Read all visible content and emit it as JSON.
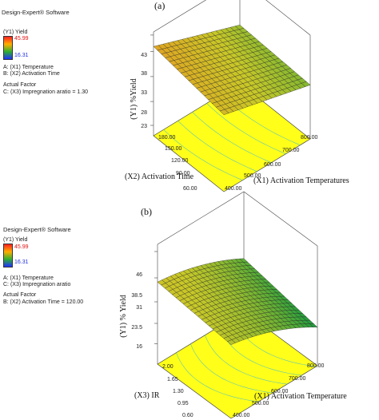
{
  "chart_data": [
    {
      "type": "surface",
      "panel_label": "(a)",
      "software": "Design-Expert® Software",
      "response": "(Y1) Yield",
      "color_scale": {
        "max": "45.99",
        "min": "16.31",
        "max_color": "#ff2020",
        "min_color": "#2030ff"
      },
      "factors": [
        "A: (X1) Temperature",
        "B: (X2) Activation Time"
      ],
      "actual_factor_heading": "Actual Factor",
      "actual_factor": "C: (X3) Impregnation aratio  = 1.30",
      "zlabel": "(Y1) %Yield",
      "zticks": [
        "43",
        "38",
        "33",
        "28",
        "23"
      ],
      "xlabel": "(X1) Activation Temperatures",
      "xticks": [
        "400.00",
        "500.00",
        "600.00",
        "700.00",
        "800.00"
      ],
      "ylabel": "(X2) Activation Time",
      "yticks": [
        "60.00",
        "90.00",
        "120.00",
        "150.00",
        "180.00"
      ],
      "zlim": [
        23,
        43
      ]
    },
    {
      "type": "surface",
      "panel_label": "(b)",
      "software": "Design-Expert® Software",
      "response": "(Y1) Yield",
      "color_scale": {
        "max": "45.99",
        "min": "16.31",
        "max_color": "#ff2020",
        "min_color": "#2030ff"
      },
      "factors": [
        "A: (X1) Temperature",
        "C: (X3) Impregnation aratio"
      ],
      "actual_factor_heading": "Actual Factor",
      "actual_factor": "B: (X2) Activation Time = 120.00",
      "zlabel": "(Y1) % Yield",
      "zticks": [
        "46",
        "38.5",
        "31",
        "23.5",
        "16"
      ],
      "xlabel": "(X1) Activation Temperature",
      "xticks": [
        "400.00",
        "500.00",
        "600.00",
        "700.00",
        "800.00"
      ],
      "ylabel": "(X3) IR",
      "yticks": [
        "0.60",
        "0.95",
        "1.30",
        "1.65",
        "2.00"
      ],
      "zlim": [
        16,
        46
      ]
    }
  ]
}
